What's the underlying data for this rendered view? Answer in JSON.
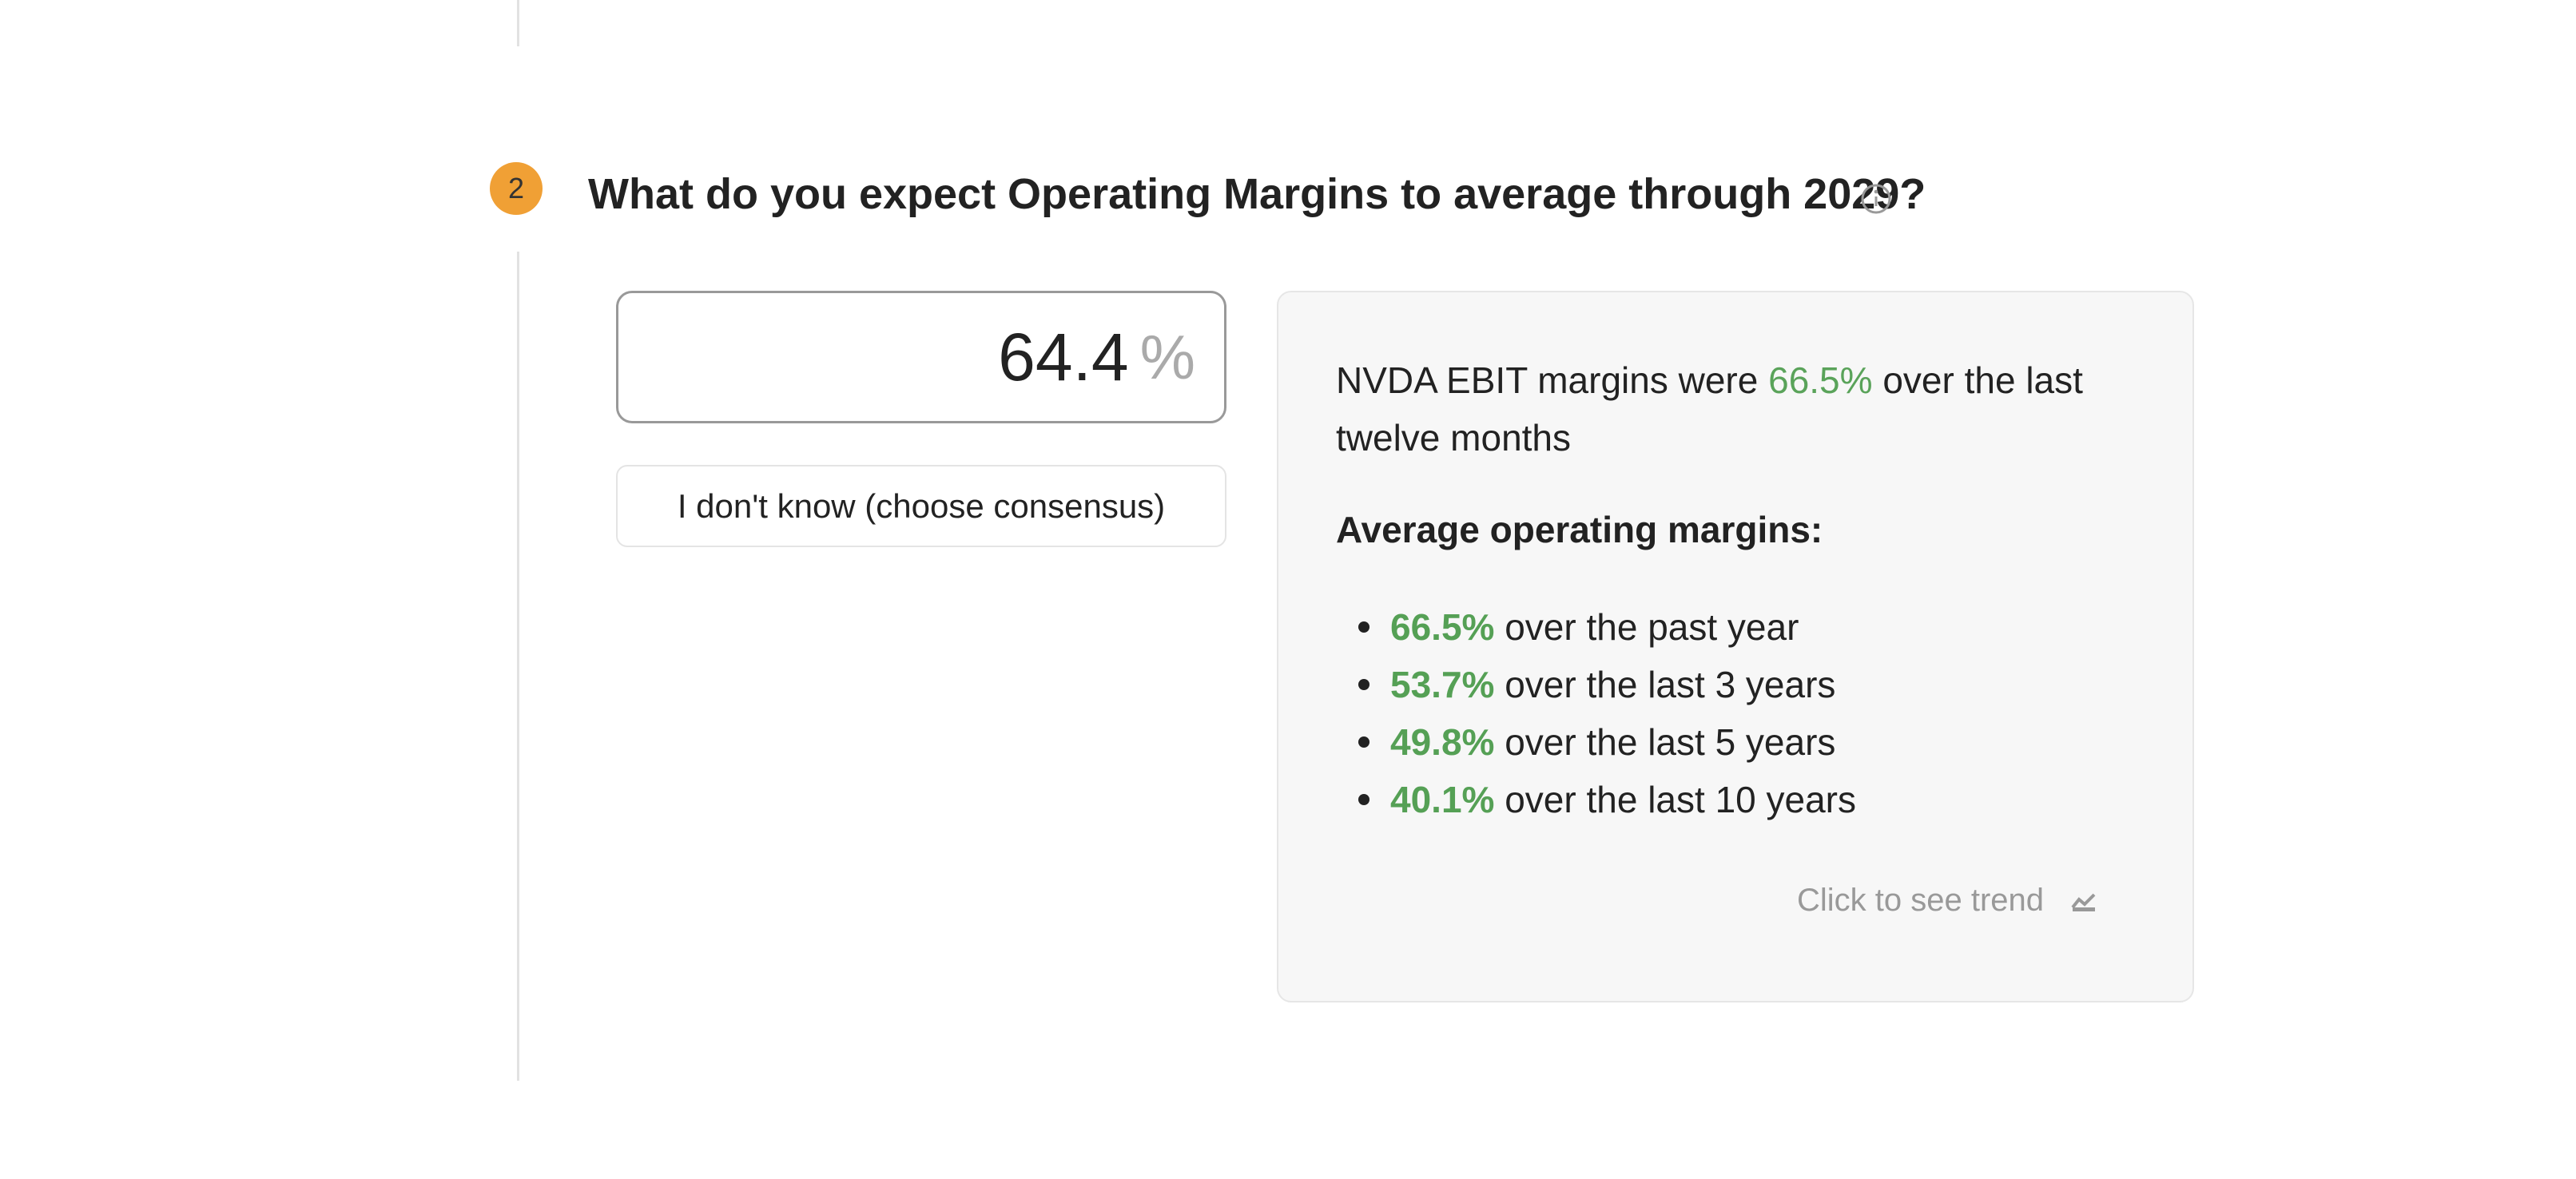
{
  "step_number": "2",
  "question": "What do you expect Operating Margins to average through 2029?",
  "input": {
    "value": "64.4",
    "unit": "%"
  },
  "button": "I don't know (choose consensus)",
  "info": {
    "summary": {
      "before": "NVDA EBIT margins were",
      "highlight": "66.5%",
      "after": "over the last twelve months"
    },
    "heading": "Average operating margins:",
    "items": [
      {
        "value": "66.5%",
        "text": "over the past year"
      },
      {
        "value": "53.7%",
        "text": "over the last 3 years"
      },
      {
        "value": "49.8%",
        "text": "over the last 5 years"
      },
      {
        "value": "40.1%",
        "text": "over the last 10 years"
      }
    ],
    "link": "Click to see trend"
  }
}
